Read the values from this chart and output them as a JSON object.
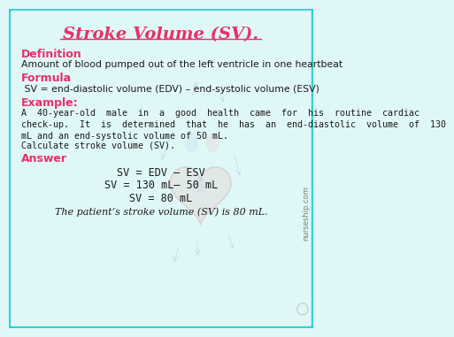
{
  "title": "Stroke Volume (SV).",
  "title_color": "#e8306a",
  "bg_color": "#e0f7f7",
  "border_color": "#2dd4d4",
  "text_color": "#1a1a1a",
  "heading_color": "#e8306a",
  "definition_label": "Definition",
  "definition_text": "Amount of blood pumped out of the left ventricle in one heartbeat",
  "formula_label": "Formula",
  "formula_text": " SV = end-diastolic volume (EDV) – end-systolic volume (ESV)",
  "example_label": "Example:",
  "example_text1": "A  40-year-old  male  in  a  good  health  came  for  his  routine  cardiac",
  "example_text2": "check-up.  It  is  determined  that  he  has  an  end-diastolic  volume  of  130",
  "example_text3": "mL and an end-systolic volume of 50 mL.",
  "example_text4": "Calculate stroke volume (SV).",
  "answer_label": "Answer",
  "answer_line1": "SV = EDV – ESV",
  "answer_line2": "SV = 130 mL– 50 mL",
  "answer_line3": "SV = 80 mL",
  "answer_italic": "The patient’s stroke volume (SV) is 80 mL.",
  "watermark": "nurseship.com"
}
